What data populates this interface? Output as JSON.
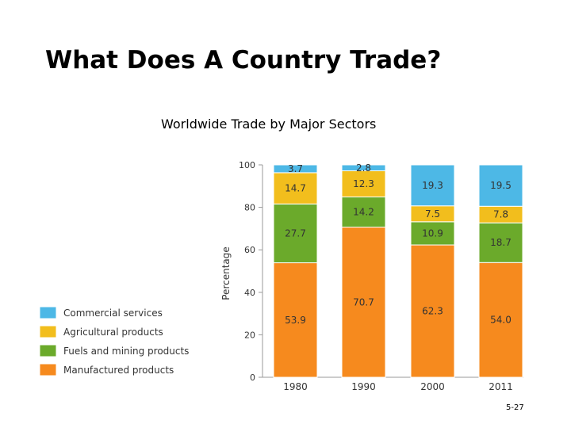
{
  "slide": {
    "title": "What Does A Country Trade?",
    "page_number": "5-27"
  },
  "chart_data": {
    "type": "bar",
    "stacked": true,
    "title": "Worldwide Trade by Major Sectors",
    "xlabel": "",
    "ylabel": "Percentage",
    "ylim": [
      0,
      100
    ],
    "yticks": [
      0,
      20,
      40,
      60,
      80,
      100
    ],
    "categories": [
      "1980",
      "1990",
      "2000",
      "2011"
    ],
    "series": [
      {
        "name": "Manufactured products",
        "color": "#F68A1E",
        "values": [
          53.9,
          70.7,
          62.3,
          54.0
        ],
        "labels": [
          "53.9",
          "70.7",
          "62.3",
          "54.0"
        ]
      },
      {
        "name": "Fuels and mining products",
        "color": "#6BAA2B",
        "values": [
          27.7,
          14.2,
          10.9,
          18.7
        ],
        "labels": [
          "27.7",
          "14.2",
          "10.9",
          "18.7"
        ]
      },
      {
        "name": "Agricultural products",
        "color": "#F2BE1D",
        "values": [
          14.7,
          12.3,
          7.5,
          7.8
        ],
        "labels": [
          "14.7",
          "12.3",
          "7.5",
          "7.8"
        ]
      },
      {
        "name": "Commercial services",
        "color": "#4DB8E6",
        "values": [
          3.7,
          2.8,
          19.3,
          19.5
        ],
        "labels": [
          "3.7",
          "2.8",
          "19.3",
          "19.5"
        ]
      }
    ],
    "legend_order": [
      "Commercial services",
      "Agricultural products",
      "Fuels and mining products",
      "Manufactured products"
    ],
    "legend_position": "left",
    "grid": false
  }
}
